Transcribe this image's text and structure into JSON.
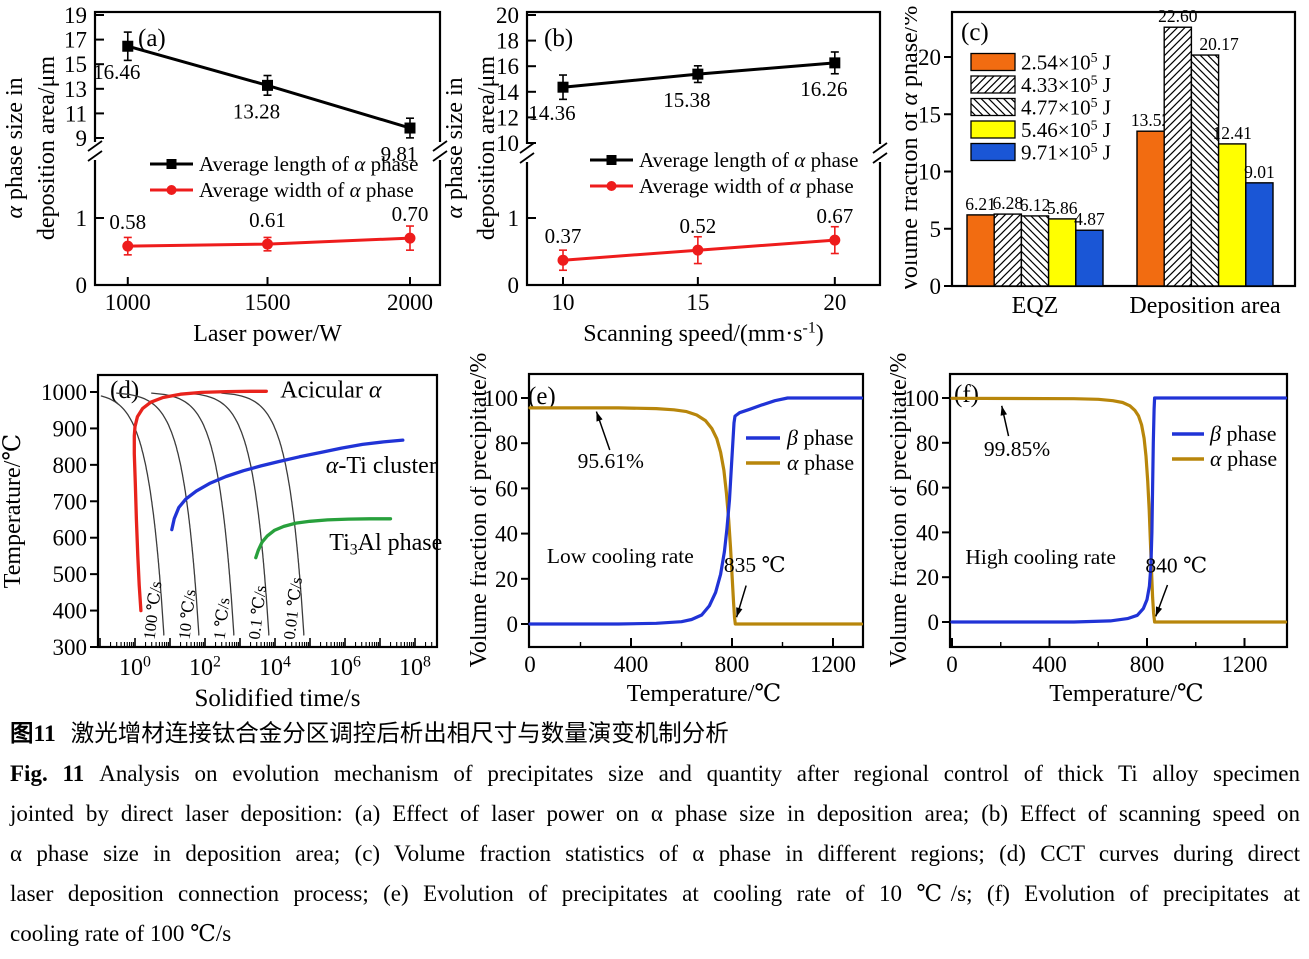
{
  "caption": {
    "zh_label": "图11",
    "zh_text": "激光增材连接钛合金分区调控后析出相尺寸与数量演变机制分析",
    "en_label": "Fig. 11",
    "en_lines": [
      "Analysis on evolution mechanism of precipitates size and quantity after regional control of thick Ti alloy specimen",
      "jointed by direct laser deposition: (a) Effect of laser power on α phase size in deposition area; (b) Effect of scanning speed on",
      "α phase size in deposition area; (c) Volume fraction statistics of α phase in different regions; (d) CCT curves during direct",
      "laser deposition connection process; (e) Evolution of precipitates at cooling rate of 10 ℃/s; (f) Evolution of precipitates at",
      "cooling rate of 100 ℃/s"
    ]
  },
  "chart_data": [
    {
      "id": "a",
      "type": "line",
      "panel_label": "(a)",
      "xlabel": "Laser power/W",
      "ylabel_lines": [
        "*α* phase size in",
        "deposition area/μm"
      ],
      "x": [
        1000,
        1500,
        2000
      ],
      "x_tick_labels": [
        "1000",
        "1500",
        "2000"
      ],
      "upper_axis": {
        "min": 9,
        "max": 19,
        "ticks": [
          19,
          17,
          15,
          13,
          11,
          9
        ]
      },
      "lower_axis": {
        "ticks": [
          1,
          0
        ]
      },
      "axis_break": true,
      "series": [
        {
          "name": "Average length of *α* phase",
          "color": "#000000",
          "marker": "square",
          "segment": "upper",
          "values": [
            16.46,
            13.28,
            9.81
          ],
          "value_labels": [
            "16.46",
            "13.28",
            "9.81"
          ],
          "errors": [
            1.15,
            0.8,
            0.8
          ]
        },
        {
          "name": "Average width of *α* phase",
          "color": "#ee1c1c",
          "marker": "circle",
          "segment": "lower",
          "values": [
            0.58,
            0.61,
            0.7
          ],
          "value_labels": [
            "0.58",
            "0.61",
            "0.70"
          ],
          "errors": [
            0.13,
            0.1,
            0.18
          ]
        }
      ]
    },
    {
      "id": "b",
      "type": "line",
      "panel_label": "(b)",
      "xlabel": "Scanning speed/(mm·s^{-1})",
      "ylabel_lines": [
        "*α* phase size in",
        "deposition area/μm"
      ],
      "x": [
        10,
        15,
        20
      ],
      "x_tick_labels": [
        "10",
        "15",
        "20"
      ],
      "upper_axis": {
        "min": 10,
        "max": 20,
        "ticks": [
          20,
          18,
          16,
          14,
          12,
          10
        ]
      },
      "lower_axis": {
        "ticks": [
          1,
          0
        ]
      },
      "axis_break": true,
      "series": [
        {
          "name": "Average length of *α* phase",
          "color": "#000000",
          "marker": "square",
          "segment": "upper",
          "values": [
            14.36,
            15.38,
            16.26
          ],
          "value_labels": [
            "14.36",
            "15.38",
            "16.26"
          ],
          "errors": [
            0.95,
            0.65,
            0.85
          ]
        },
        {
          "name": "Average width of *α* phase",
          "color": "#ee1c1c",
          "marker": "circle",
          "segment": "lower",
          "values": [
            0.37,
            0.52,
            0.67
          ],
          "value_labels": [
            "0.37",
            "0.52",
            "0.67"
          ],
          "errors": [
            0.15,
            0.2,
            0.2
          ]
        }
      ]
    },
    {
      "id": "c",
      "type": "bar",
      "panel_label": "(c)",
      "ylabel": "Volume fraction of *α* phase/%",
      "y_ticks": [
        0,
        5,
        10,
        15,
        20
      ],
      "ylim": [
        0,
        23.9
      ],
      "categories": [
        "EQZ",
        "Deposition area"
      ],
      "series": [
        {
          "name": "2.54×10^{5} J",
          "fill": "#f26c11",
          "pattern": null,
          "values": [
            6.21,
            13.52
          ],
          "value_labels": [
            "6.21",
            "13.52"
          ],
          "label_dx": [
            0,
            0
          ]
        },
        {
          "name": "4.33×10^{5} J",
          "fill": "#ffffff",
          "pattern": "diag-up",
          "values": [
            6.28,
            22.6
          ],
          "value_labels": [
            "6.28",
            "22.60"
          ],
          "label_dx": [
            0,
            0
          ]
        },
        {
          "name": "4.77×10^{5} J",
          "fill": "#ffffff",
          "pattern": "diag-down",
          "values": [
            6.12,
            20.17
          ],
          "value_labels": [
            "6.12",
            "20.17"
          ],
          "label_dx": [
            0,
            14
          ]
        },
        {
          "name": "5.46×10^{5} J",
          "fill": "#ffff00",
          "pattern": null,
          "values": [
            5.86,
            12.41
          ],
          "value_labels": [
            "5.86",
            "12.41"
          ],
          "label_dx": [
            0,
            0
          ]
        },
        {
          "name": "9.71×10^{5} J",
          "fill": "#1a56d6",
          "pattern": null,
          "values": [
            4.87,
            9.01
          ],
          "value_labels": [
            "4.87",
            "9.01"
          ],
          "label_dx": [
            0,
            0
          ]
        }
      ]
    },
    {
      "id": "d",
      "type": "cct",
      "panel_label": "(d)",
      "xlabel": "Solidified time/s",
      "ylabel": "Temperature/℃",
      "y_ticks": [
        1000,
        900,
        800,
        700,
        600,
        500,
        400,
        300
      ],
      "x_tick_exponents": [
        0,
        2,
        4,
        6,
        8
      ],
      "start_temp": 1000,
      "cooling_rates": [
        {
          "rate": 100,
          "label": "100 ℃/s"
        },
        {
          "rate": 10,
          "label": "10 ℃/s"
        },
        {
          "rate": 1,
          "label": "1 ℃/s"
        },
        {
          "rate": 0.1,
          "label": "0.1 ℃/s"
        },
        {
          "rate": 0.01,
          "label": "0.01 ℃/s"
        }
      ],
      "curves": [
        {
          "name": "Acicular *α*",
          "color": "#e8231c",
          "label_anchor": [
            4.15,
            985
          ],
          "points": [
            [
              0.17,
              400
            ],
            [
              0.12,
              470
            ],
            [
              0.08,
              550
            ],
            [
              0.04,
              650
            ],
            [
              0.01,
              750
            ],
            [
              -0.02,
              830
            ],
            [
              -0.02,
              880
            ],
            [
              0,
              905
            ],
            [
              0.07,
              932
            ],
            [
              0.22,
              955
            ],
            [
              0.45,
              972
            ],
            [
              0.8,
              985
            ],
            [
              1.3,
              994
            ],
            [
              1.9,
              999
            ],
            [
              2.6,
              1001
            ],
            [
              3.3,
              1002
            ],
            [
              3.75,
              1002
            ]
          ]
        },
        {
          "name": "*α*-Ti cluster",
          "color": "#2033d6",
          "label_anchor": [
            5.45,
            778
          ],
          "points": [
            [
              1.05,
              622
            ],
            [
              1.12,
              652
            ],
            [
              1.25,
              683
            ],
            [
              1.45,
              706
            ],
            [
              1.75,
              728
            ],
            [
              2.15,
              750
            ],
            [
              2.6,
              768
            ],
            [
              3.1,
              784
            ],
            [
              3.6,
              797
            ],
            [
              4.1,
              809
            ],
            [
              4.7,
              822
            ],
            [
              5.3,
              834
            ],
            [
              5.9,
              846
            ],
            [
              6.5,
              856
            ],
            [
              7.1,
              863
            ],
            [
              7.65,
              868
            ]
          ]
        },
        {
          "name": "Ti_{3}Al phase",
          "color": "#28a03c",
          "label_anchor": [
            5.55,
            566
          ],
          "points": [
            [
              3.45,
              545
            ],
            [
              3.52,
              565
            ],
            [
              3.63,
              588
            ],
            [
              3.78,
              605
            ],
            [
              3.98,
              620
            ],
            [
              4.25,
              631
            ],
            [
              4.6,
              640
            ],
            [
              5,
              645
            ],
            [
              5.5,
              649
            ],
            [
              6.1,
              651
            ],
            [
              6.7,
              652
            ],
            [
              7.3,
              652
            ]
          ]
        }
      ]
    },
    {
      "id": "e",
      "type": "phase-fraction",
      "panel_label": "(e)",
      "xlabel": "Temperature/℃",
      "ylabel": "Volume fraction of precipitate/%",
      "x_ticks": [
        0,
        400,
        800,
        1200
      ],
      "y_ticks": [
        0,
        20,
        40,
        60,
        80,
        100
      ],
      "legend": [
        {
          "name": "*β* phase",
          "color": "#2033d6"
        },
        {
          "name": "*α* phase",
          "color": "#b8860b"
        }
      ],
      "cooling_note": "Low cooling rate",
      "plateau_label": "95.61%",
      "plateau_value": 95.61,
      "transition_label": "835 ℃",
      "transition_temp": 835,
      "beta": [
        [
          0,
          0
        ],
        [
          350,
          0
        ],
        [
          500,
          0.3
        ],
        [
          600,
          1
        ],
        [
          640,
          2
        ],
        [
          680,
          4
        ],
        [
          710,
          8
        ],
        [
          735,
          14
        ],
        [
          755,
          22
        ],
        [
          770,
          32
        ],
        [
          780,
          42
        ],
        [
          790,
          55
        ],
        [
          797,
          68
        ],
        [
          803,
          80
        ],
        [
          808,
          89
        ],
        [
          812,
          92
        ],
        [
          830,
          93.5
        ],
        [
          870,
          95
        ],
        [
          920,
          97
        ],
        [
          970,
          98.8
        ],
        [
          1020,
          100
        ],
        [
          1320,
          100
        ]
      ],
      "alpha": [
        [
          0,
          95.61
        ],
        [
          350,
          95.61
        ],
        [
          500,
          95.3
        ],
        [
          570,
          94.8
        ],
        [
          620,
          94
        ],
        [
          660,
          92.5
        ],
        [
          695,
          90
        ],
        [
          720,
          86.5
        ],
        [
          740,
          82
        ],
        [
          755,
          76
        ],
        [
          768,
          68
        ],
        [
          778,
          58
        ],
        [
          787,
          46
        ],
        [
          794,
          34
        ],
        [
          800,
          22
        ],
        [
          806,
          10
        ],
        [
          810,
          3
        ],
        [
          813,
          0
        ],
        [
          900,
          0
        ],
        [
          1320,
          0
        ]
      ]
    },
    {
      "id": "f",
      "type": "phase-fraction",
      "panel_label": "(f)",
      "xlabel": "Temperature/℃",
      "ylabel": "Volume fraction of precipitate/%",
      "x_ticks": [
        0,
        400,
        800,
        1200
      ],
      "y_ticks": [
        0,
        20,
        40,
        60,
        80,
        100
      ],
      "legend": [
        {
          "name": "*β* phase",
          "color": "#2033d6"
        },
        {
          "name": "*α* phase",
          "color": "#b8860b"
        }
      ],
      "cooling_note": "High cooling rate",
      "plateau_label": "99.85%",
      "plateau_value": 99.85,
      "transition_label": "840 ℃",
      "transition_temp": 840,
      "beta": [
        [
          0,
          0
        ],
        [
          500,
          0
        ],
        [
          650,
          0.5
        ],
        [
          720,
          1.5
        ],
        [
          760,
          3
        ],
        [
          785,
          6
        ],
        [
          800,
          10
        ],
        [
          810,
          16
        ],
        [
          816,
          25
        ],
        [
          820,
          40
        ],
        [
          823,
          60
        ],
        [
          826,
          80
        ],
        [
          829,
          95
        ],
        [
          831,
          100
        ],
        [
          1370,
          100
        ]
      ],
      "alpha": [
        [
          0,
          99.85
        ],
        [
          500,
          99.7
        ],
        [
          600,
          99.4
        ],
        [
          660,
          98.8
        ],
        [
          700,
          98
        ],
        [
          730,
          96.5
        ],
        [
          750,
          94.5
        ],
        [
          765,
          92
        ],
        [
          778,
          88
        ],
        [
          788,
          82
        ],
        [
          796,
          74
        ],
        [
          803,
          63
        ],
        [
          809,
          50
        ],
        [
          814,
          36
        ],
        [
          819,
          22
        ],
        [
          823,
          11
        ],
        [
          827,
          4
        ],
        [
          831,
          0
        ],
        [
          1370,
          0
        ]
      ]
    }
  ]
}
